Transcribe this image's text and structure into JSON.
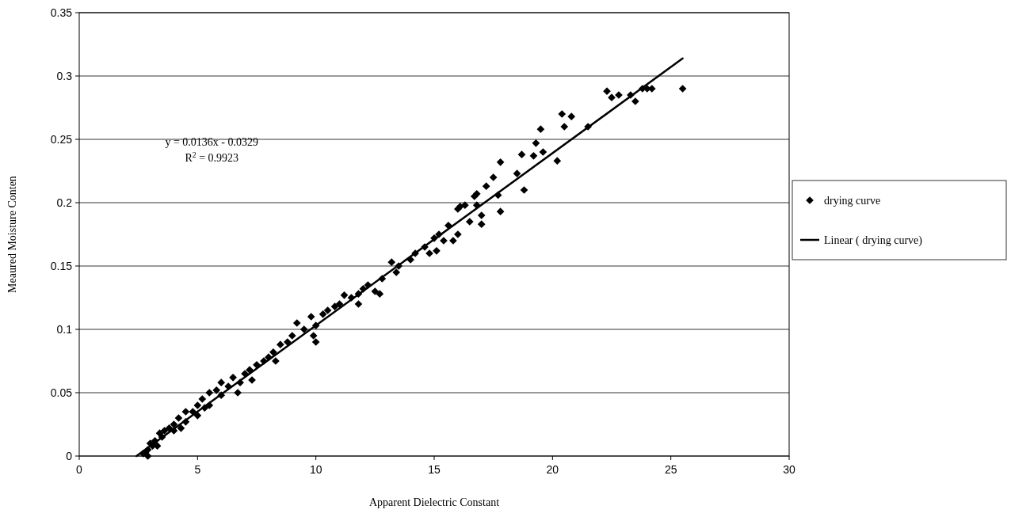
{
  "chart_data": {
    "type": "scatter",
    "xlabel": "Apparent Dielectric Constant",
    "ylabel": "Meaured Moisture Conten",
    "xlim": [
      0,
      30
    ],
    "xticks": [
      0,
      5,
      10,
      15,
      20,
      25,
      30
    ],
    "ylim": [
      0,
      0.35
    ],
    "yticks": [
      0,
      0.05,
      0.1,
      0.15,
      0.2,
      0.25,
      0.3,
      0.35
    ],
    "grid": "y",
    "legend": "right",
    "marker": "diamond",
    "annotations": [
      "y = 0.0136x - 0.0329",
      "R$^{2}$ = 0.9923"
    ],
    "series": [
      {
        "name": "drying curve",
        "color": "#000000",
        "x": [
          25.5,
          24.2,
          24.0,
          23.8,
          23.5,
          23.3,
          22.8,
          22.5,
          22.3,
          21.5,
          20.8,
          20.4,
          20.5,
          20.2,
          19.6,
          19.5,
          19.3,
          19.2,
          18.7,
          18.8,
          18.5,
          17.8,
          17.8,
          17.5,
          17.7,
          17.2,
          17.0,
          17.0,
          16.8,
          16.7,
          16.8,
          16.5,
          16.3,
          16.1,
          16.0,
          16.0,
          15.8,
          15.6,
          15.4,
          15.2,
          15.0,
          15.1,
          14.8,
          14.6,
          14.2,
          14.0,
          13.5,
          13.4,
          13.2,
          12.8,
          12.5,
          12.2,
          12.0,
          11.8,
          11.5,
          11.2,
          11.0,
          10.8,
          10.5,
          10.3,
          10.0,
          10.0,
          9.9,
          9.8,
          9.5,
          9.2,
          9.0,
          8.8,
          8.5,
          8.2,
          8.0,
          7.8,
          7.5,
          7.2,
          7.0,
          6.8,
          6.5,
          6.3,
          6.0,
          6.0,
          5.8,
          5.5,
          5.5,
          5.2,
          5.0,
          5.0,
          4.8,
          4.5,
          4.5,
          4.2,
          4.0,
          4.0,
          3.8,
          3.6,
          3.5,
          3.4,
          3.2,
          3.1,
          3.0,
          2.9,
          2.8,
          2.7,
          2.9,
          6.7,
          7.3,
          8.3,
          5.3,
          4.3,
          3.3,
          11.8,
          12.7
        ],
        "values": [
          0.29,
          0.29,
          0.29,
          0.29,
          0.28,
          0.285,
          0.285,
          0.283,
          0.288,
          0.26,
          0.268,
          0.27,
          0.26,
          0.233,
          0.24,
          0.258,
          0.247,
          0.237,
          0.238,
          0.21,
          0.223,
          0.232,
          0.193,
          0.22,
          0.206,
          0.213,
          0.183,
          0.19,
          0.207,
          0.205,
          0.198,
          0.185,
          0.198,
          0.197,
          0.195,
          0.175,
          0.17,
          0.182,
          0.17,
          0.175,
          0.172,
          0.162,
          0.16,
          0.165,
          0.16,
          0.155,
          0.15,
          0.145,
          0.153,
          0.14,
          0.13,
          0.135,
          0.132,
          0.128,
          0.125,
          0.127,
          0.12,
          0.118,
          0.115,
          0.112,
          0.103,
          0.09,
          0.095,
          0.11,
          0.1,
          0.105,
          0.095,
          0.09,
          0.088,
          0.082,
          0.078,
          0.075,
          0.072,
          0.068,
          0.065,
          0.058,
          0.062,
          0.055,
          0.058,
          0.048,
          0.052,
          0.05,
          0.04,
          0.045,
          0.04,
          0.032,
          0.035,
          0.035,
          0.027,
          0.03,
          0.025,
          0.02,
          0.022,
          0.02,
          0.015,
          0.018,
          0.012,
          0.008,
          0.01,
          0.005,
          0.003,
          0.002,
          0.0,
          0.05,
          0.06,
          0.075,
          0.038,
          0.022,
          0.008,
          0.12,
          0.128
        ]
      },
      {
        "name": "Linear ( drying curve)",
        "color": "#000000",
        "type": "line",
        "marker": "none",
        "x": [
          2.42,
          25.5
        ],
        "values": [
          0,
          0.3139
        ]
      }
    ]
  }
}
